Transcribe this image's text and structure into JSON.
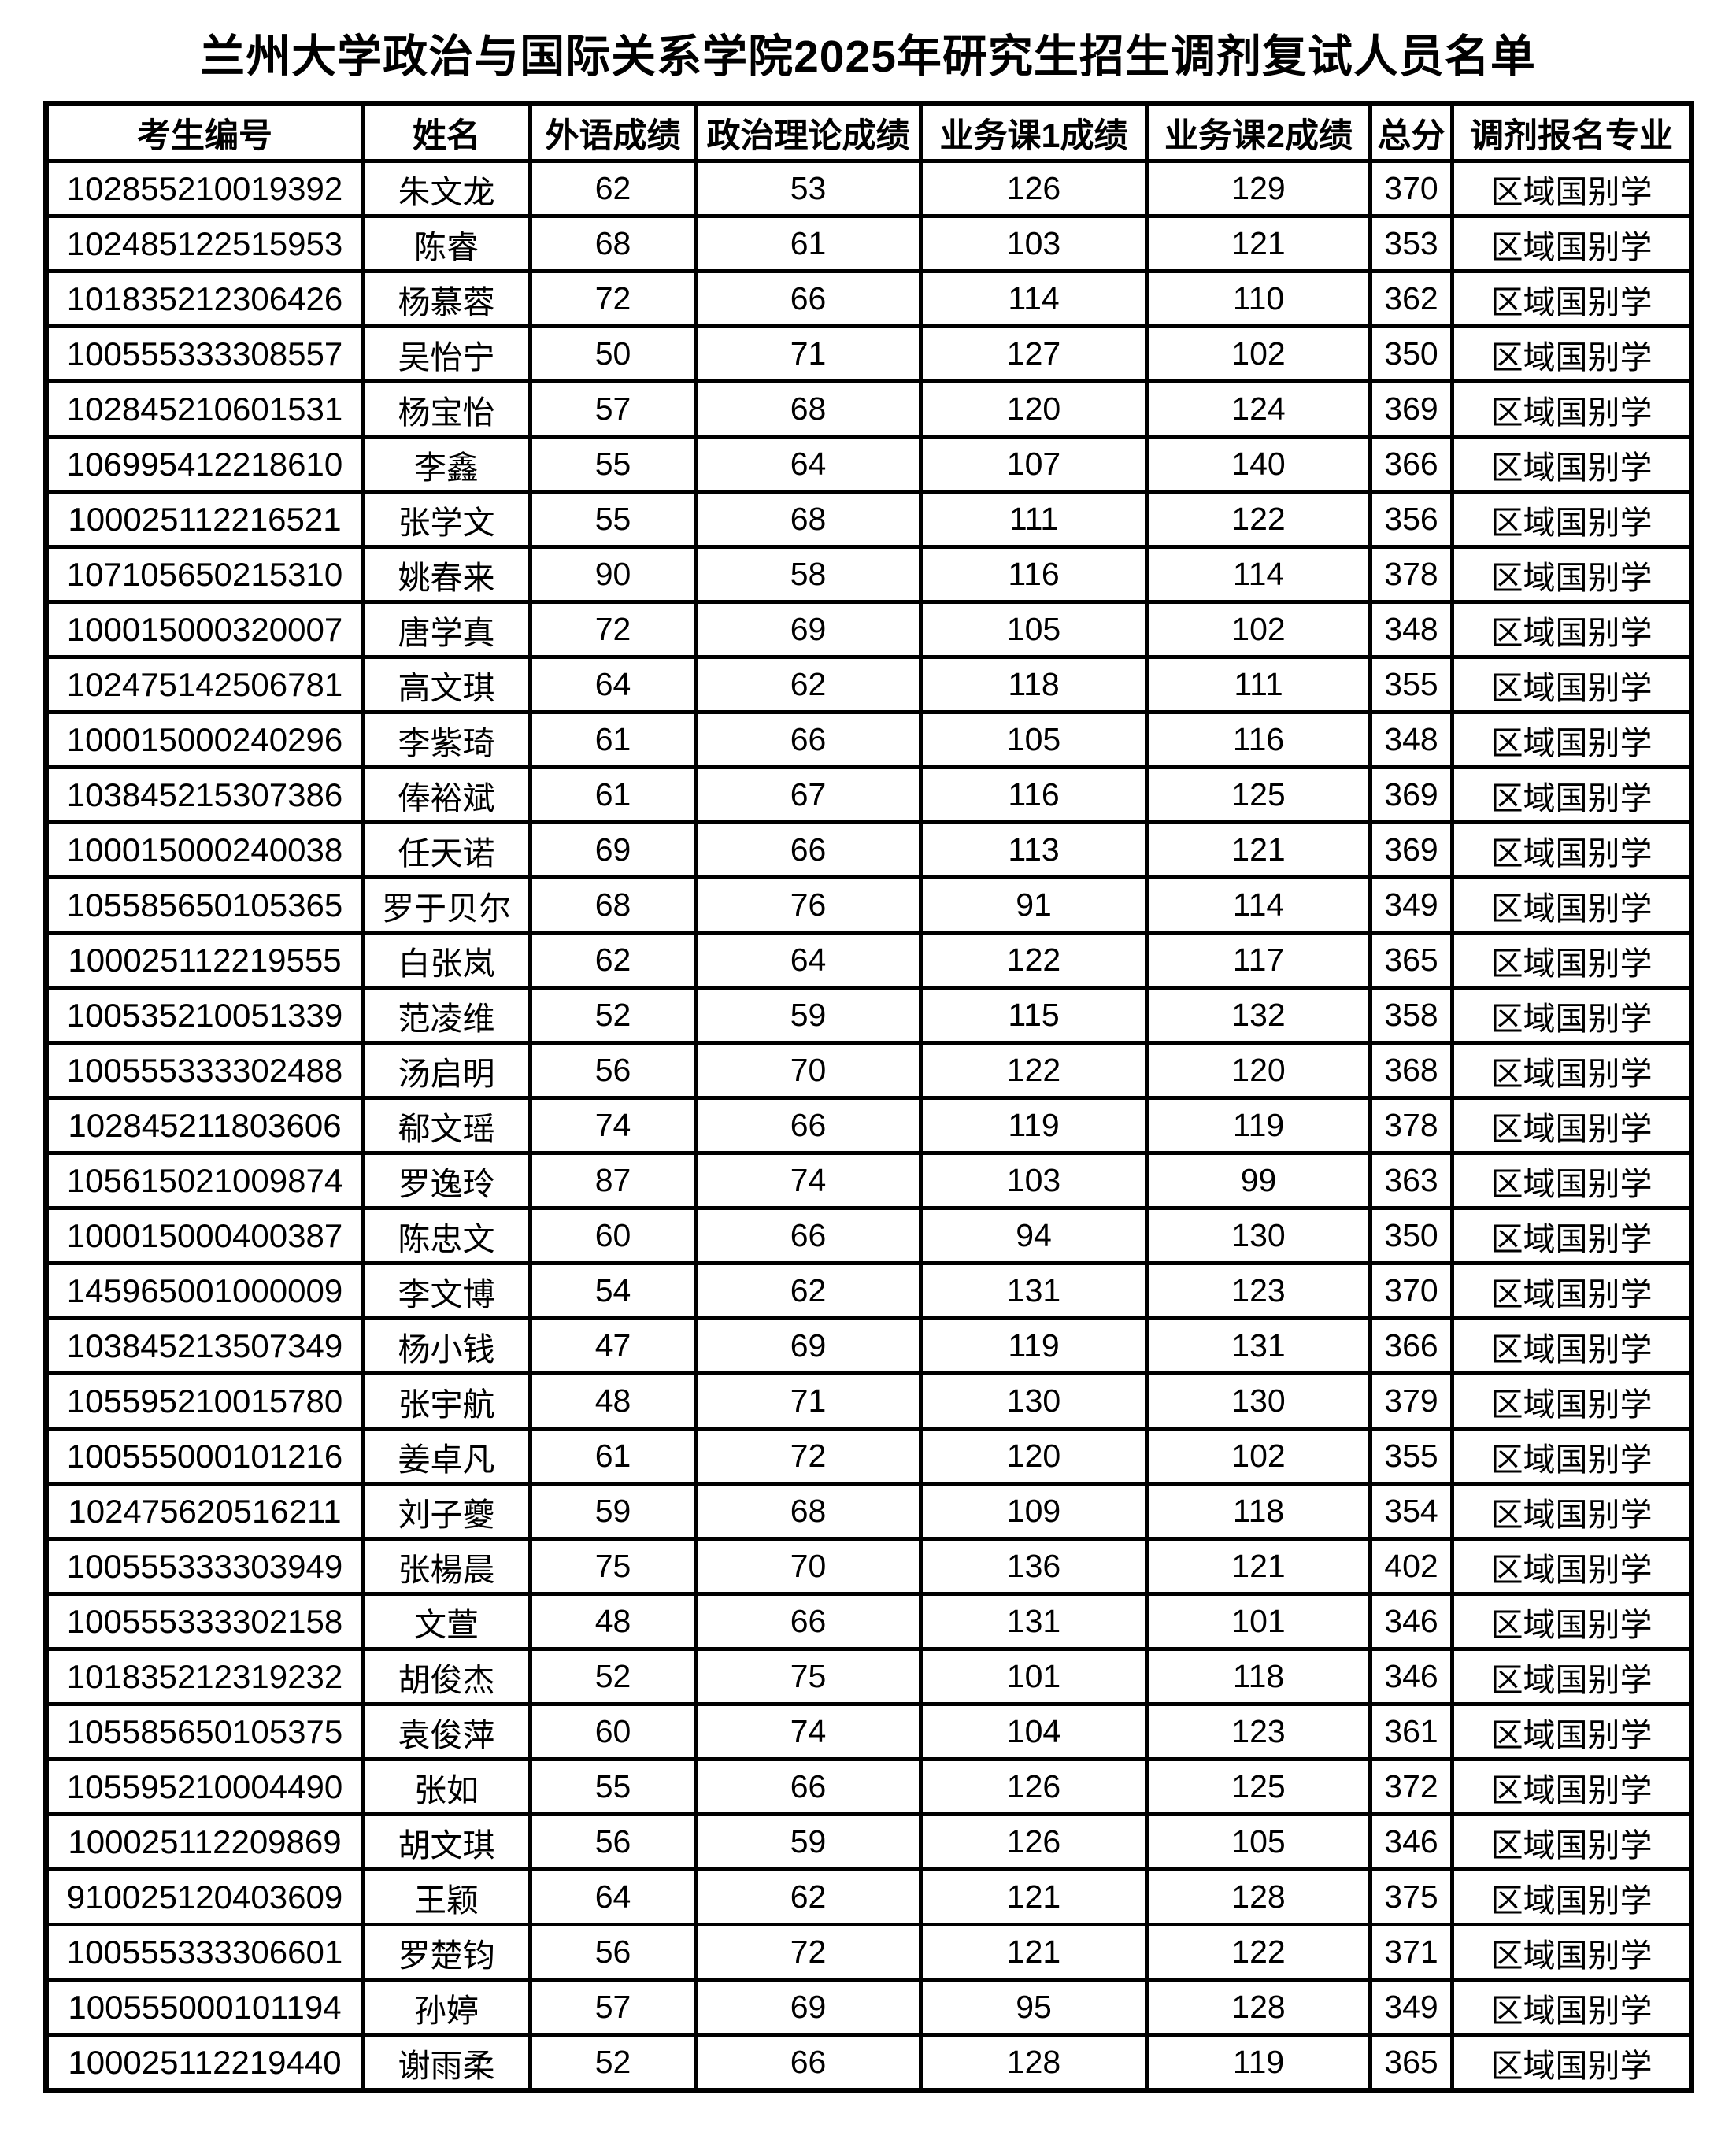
{
  "title": "兰州大学政治与国际关系学院2025年研究生招生调剂复试人员名单",
  "columns": [
    "考生编号",
    "姓名",
    "外语成绩",
    "政治理论成绩",
    "业务课1成绩",
    "业务课2成绩",
    "总分",
    "调剂报名专业"
  ],
  "rows": [
    [
      "102855210019392",
      "朱文龙",
      "62",
      "53",
      "126",
      "129",
      "370",
      "区域国别学"
    ],
    [
      "102485122515953",
      "陈睿",
      "68",
      "61",
      "103",
      "121",
      "353",
      "区域国别学"
    ],
    [
      "101835212306426",
      "杨慕蓉",
      "72",
      "66",
      "114",
      "110",
      "362",
      "区域国别学"
    ],
    [
      "100555333308557",
      "吴怡宁",
      "50",
      "71",
      "127",
      "102",
      "350",
      "区域国别学"
    ],
    [
      "102845210601531",
      "杨宝怡",
      "57",
      "68",
      "120",
      "124",
      "369",
      "区域国别学"
    ],
    [
      "106995412218610",
      "李鑫",
      "55",
      "64",
      "107",
      "140",
      "366",
      "区域国别学"
    ],
    [
      "100025112216521",
      "张学文",
      "55",
      "68",
      "111",
      "122",
      "356",
      "区域国别学"
    ],
    [
      "107105650215310",
      "姚春来",
      "90",
      "58",
      "116",
      "114",
      "378",
      "区域国别学"
    ],
    [
      "100015000320007",
      "唐学真",
      "72",
      "69",
      "105",
      "102",
      "348",
      "区域国别学"
    ],
    [
      "102475142506781",
      "高文琪",
      "64",
      "62",
      "118",
      "111",
      "355",
      "区域国别学"
    ],
    [
      "100015000240296",
      "李紫琦",
      "61",
      "66",
      "105",
      "116",
      "348",
      "区域国别学"
    ],
    [
      "103845215307386",
      "俸裕斌",
      "61",
      "67",
      "116",
      "125",
      "369",
      "区域国别学"
    ],
    [
      "100015000240038",
      "任天诺",
      "69",
      "66",
      "113",
      "121",
      "369",
      "区域国别学"
    ],
    [
      "105585650105365",
      "罗于贝尔",
      "68",
      "76",
      "91",
      "114",
      "349",
      "区域国别学"
    ],
    [
      "100025112219555",
      "白张岚",
      "62",
      "64",
      "122",
      "117",
      "365",
      "区域国别学"
    ],
    [
      "100535210051339",
      "范凌维",
      "52",
      "59",
      "115",
      "132",
      "358",
      "区域国别学"
    ],
    [
      "100555333302488",
      "汤启明",
      "56",
      "70",
      "122",
      "120",
      "368",
      "区域国别学"
    ],
    [
      "102845211803606",
      "郗文瑶",
      "74",
      "66",
      "119",
      "119",
      "378",
      "区域国别学"
    ],
    [
      "105615021009874",
      "罗逸玲",
      "87",
      "74",
      "103",
      "99",
      "363",
      "区域国别学"
    ],
    [
      "100015000400387",
      "陈忠文",
      "60",
      "66",
      "94",
      "130",
      "350",
      "区域国别学"
    ],
    [
      "145965001000009",
      "李文博",
      "54",
      "62",
      "131",
      "123",
      "370",
      "区域国别学"
    ],
    [
      "103845213507349",
      "杨小钱",
      "47",
      "69",
      "119",
      "131",
      "366",
      "区域国别学"
    ],
    [
      "105595210015780",
      "张宇航",
      "48",
      "71",
      "130",
      "130",
      "379",
      "区域国别学"
    ],
    [
      "100555000101216",
      "姜卓凡",
      "61",
      "72",
      "120",
      "102",
      "355",
      "区域国别学"
    ],
    [
      "102475620516211",
      "刘子夔",
      "59",
      "68",
      "109",
      "118",
      "354",
      "区域国别学"
    ],
    [
      "100555333303949",
      "张楊晨",
      "75",
      "70",
      "136",
      "121",
      "402",
      "区域国别学"
    ],
    [
      "100555333302158",
      "文萱",
      "48",
      "66",
      "131",
      "101",
      "346",
      "区域国别学"
    ],
    [
      "101835212319232",
      "胡俊杰",
      "52",
      "75",
      "101",
      "118",
      "346",
      "区域国别学"
    ],
    [
      "105585650105375",
      "袁俊萍",
      "60",
      "74",
      "104",
      "123",
      "361",
      "区域国别学"
    ],
    [
      "105595210004490",
      "张如",
      "55",
      "66",
      "126",
      "125",
      "372",
      "区域国别学"
    ],
    [
      "100025112209869",
      "胡文琪",
      "56",
      "59",
      "126",
      "105",
      "346",
      "区域国别学"
    ],
    [
      "910025120403609",
      "王颖",
      "64",
      "62",
      "121",
      "128",
      "375",
      "区域国别学"
    ],
    [
      "100555333306601",
      "罗楚钧",
      "56",
      "72",
      "121",
      "122",
      "371",
      "区域国别学"
    ],
    [
      "100555000101194",
      "孙婷",
      "57",
      "69",
      "95",
      "128",
      "349",
      "区域国别学"
    ],
    [
      "100025112219440",
      "谢雨柔",
      "52",
      "66",
      "128",
      "119",
      "365",
      "区域国别学"
    ]
  ]
}
